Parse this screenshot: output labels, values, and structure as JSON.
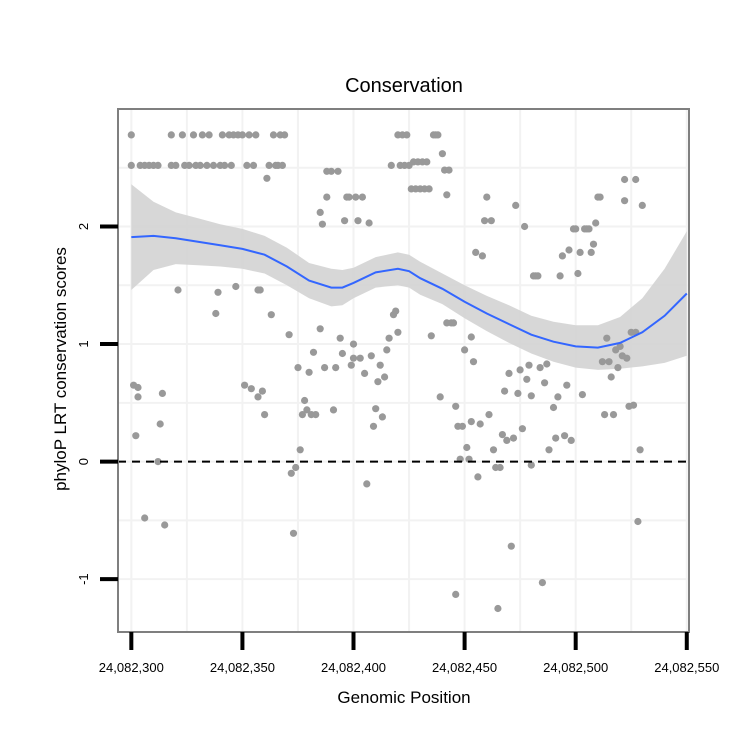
{
  "chart_data": {
    "type": "scatter",
    "title": "Conservation",
    "xlabel": "Genomic Position",
    "ylabel": "phyloP LRT conservation scores",
    "xlim": [
      24082294,
      24082551
    ],
    "ylim": [
      -1.45,
      3.0
    ],
    "x_ticks": [
      24082300,
      24082350,
      24082400,
      24082450,
      24082500,
      24082550
    ],
    "x_tick_labels": [
      "24,082,300",
      "24,082,350",
      "24,082,400",
      "24,082,450",
      "24,082,500",
      "24,082,550"
    ],
    "y_ticks": [
      -1,
      0,
      1,
      2
    ],
    "y_tick_labels": [
      "-1",
      "0",
      "1",
      "2"
    ],
    "reference_line": {
      "y": 0,
      "style": "dashed"
    },
    "colors": {
      "points": "#999999",
      "smooth": "#3366ff",
      "ribbon": "#d3d3d3",
      "panel_border": "#7f7f7f",
      "grid": "#f2f2f2"
    },
    "points": [
      [
        24082300,
        2.78
      ],
      [
        24082300,
        2.52
      ],
      [
        24082301,
        0.65
      ],
      [
        24082302,
        0.22
      ],
      [
        24082303,
        0.55
      ],
      [
        24082303,
        0.63
      ],
      [
        24082304,
        2.52
      ],
      [
        24082306,
        2.52
      ],
      [
        24082306,
        -0.48
      ],
      [
        24082308,
        2.52
      ],
      [
        24082310,
        2.52
      ],
      [
        24082312,
        2.52
      ],
      [
        24082312,
        0.0
      ],
      [
        24082313,
        0.32
      ],
      [
        24082314,
        0.58
      ],
      [
        24082315,
        -0.54
      ],
      [
        24082318,
        2.78
      ],
      [
        24082318,
        2.52
      ],
      [
        24082320,
        2.52
      ],
      [
        24082321,
        1.46
      ],
      [
        24082323,
        2.78
      ],
      [
        24082324,
        2.52
      ],
      [
        24082326,
        2.52
      ],
      [
        24082328,
        2.78
      ],
      [
        24082329,
        2.52
      ],
      [
        24082331,
        2.52
      ],
      [
        24082332,
        2.78
      ],
      [
        24082334,
        2.52
      ],
      [
        24082335,
        2.78
      ],
      [
        24082337,
        2.52
      ],
      [
        24082338,
        1.26
      ],
      [
        24082339,
        1.44
      ],
      [
        24082340,
        2.52
      ],
      [
        24082341,
        2.78
      ],
      [
        24082342,
        2.52
      ],
      [
        24082344,
        2.78
      ],
      [
        24082345,
        2.52
      ],
      [
        24082346,
        2.78
      ],
      [
        24082347,
        1.49
      ],
      [
        24082348,
        2.78
      ],
      [
        24082350,
        2.78
      ],
      [
        24082351,
        0.65
      ],
      [
        24082352,
        2.52
      ],
      [
        24082353,
        2.78
      ],
      [
        24082354,
        0.62
      ],
      [
        24082355,
        2.52
      ],
      [
        24082356,
        2.78
      ],
      [
        24082357,
        1.46
      ],
      [
        24082357,
        0.55
      ],
      [
        24082358,
        1.46
      ],
      [
        24082359,
        0.6
      ],
      [
        24082360,
        0.4
      ],
      [
        24082361,
        2.41
      ],
      [
        24082362,
        2.52
      ],
      [
        24082363,
        1.25
      ],
      [
        24082364,
        2.78
      ],
      [
        24082365,
        2.52
      ],
      [
        24082366,
        2.52
      ],
      [
        24082367,
        2.78
      ],
      [
        24082368,
        2.52
      ],
      [
        24082369,
        2.78
      ],
      [
        24082371,
        1.08
      ],
      [
        24082372,
        -0.1
      ],
      [
        24082373,
        -0.61
      ],
      [
        24082374,
        -0.05
      ],
      [
        24082375,
        0.8
      ],
      [
        24082376,
        0.1
      ],
      [
        24082377,
        0.4
      ],
      [
        24082378,
        0.52
      ],
      [
        24082379,
        0.44
      ],
      [
        24082380,
        0.76
      ],
      [
        24082381,
        0.4
      ],
      [
        24082382,
        0.93
      ],
      [
        24082383,
        0.4
      ],
      [
        24082385,
        2.12
      ],
      [
        24082385,
        1.13
      ],
      [
        24082386,
        2.02
      ],
      [
        24082387,
        0.8
      ],
      [
        24082388,
        2.25
      ],
      [
        24082388,
        2.47
      ],
      [
        24082390,
        2.47
      ],
      [
        24082391,
        0.44
      ],
      [
        24082392,
        0.8
      ],
      [
        24082393,
        2.47
      ],
      [
        24082394,
        1.05
      ],
      [
        24082395,
        0.92
      ],
      [
        24082396,
        2.05
      ],
      [
        24082397,
        2.25
      ],
      [
        24082398,
        2.25
      ],
      [
        24082399,
        0.82
      ],
      [
        24082400,
        0.88
      ],
      [
        24082400,
        1.0
      ],
      [
        24082401,
        2.25
      ],
      [
        24082402,
        2.05
      ],
      [
        24082403,
        0.88
      ],
      [
        24082404,
        2.25
      ],
      [
        24082405,
        0.75
      ],
      [
        24082406,
        -0.19
      ],
      [
        24082407,
        2.03
      ],
      [
        24082408,
        0.9
      ],
      [
        24082409,
        0.3
      ],
      [
        24082410,
        0.45
      ],
      [
        24082411,
        0.68
      ],
      [
        24082412,
        0.82
      ],
      [
        24082413,
        0.38
      ],
      [
        24082414,
        0.72
      ],
      [
        24082415,
        0.95
      ],
      [
        24082416,
        1.05
      ],
      [
        24082417,
        2.52
      ],
      [
        24082418,
        1.25
      ],
      [
        24082419,
        1.28
      ],
      [
        24082420,
        2.78
      ],
      [
        24082420,
        1.1
      ],
      [
        24082421,
        2.52
      ],
      [
        24082422,
        2.78
      ],
      [
        24082423,
        2.52
      ],
      [
        24082424,
        2.78
      ],
      [
        24082425,
        2.52
      ],
      [
        24082426,
        2.32
      ],
      [
        24082427,
        2.55
      ],
      [
        24082428,
        2.32
      ],
      [
        24082429,
        2.55
      ],
      [
        24082430,
        2.32
      ],
      [
        24082431,
        2.55
      ],
      [
        24082432,
        2.32
      ],
      [
        24082433,
        2.55
      ],
      [
        24082434,
        2.32
      ],
      [
        24082435,
        1.07
      ],
      [
        24082436,
        2.78
      ],
      [
        24082437,
        2.78
      ],
      [
        24082438,
        2.78
      ],
      [
        24082439,
        0.55
      ],
      [
        24082440,
        2.62
      ],
      [
        24082441,
        2.48
      ],
      [
        24082442,
        2.27
      ],
      [
        24082442,
        1.18
      ],
      [
        24082443,
        2.48
      ],
      [
        24082444,
        1.18
      ],
      [
        24082445,
        1.18
      ],
      [
        24082446,
        -1.13
      ],
      [
        24082446,
        0.47
      ],
      [
        24082447,
        0.3
      ],
      [
        24082448,
        0.02
      ],
      [
        24082449,
        0.3
      ],
      [
        24082450,
        0.95
      ],
      [
        24082451,
        0.12
      ],
      [
        24082452,
        0.02
      ],
      [
        24082453,
        1.06
      ],
      [
        24082453,
        0.34
      ],
      [
        24082454,
        0.85
      ],
      [
        24082455,
        1.78
      ],
      [
        24082456,
        -0.13
      ],
      [
        24082457,
        0.32
      ],
      [
        24082458,
        1.75
      ],
      [
        24082459,
        2.05
      ],
      [
        24082460,
        2.25
      ],
      [
        24082461,
        0.4
      ],
      [
        24082462,
        2.05
      ],
      [
        24082463,
        0.1
      ],
      [
        24082464,
        -0.05
      ],
      [
        24082465,
        -1.25
      ],
      [
        24082466,
        -0.05
      ],
      [
        24082467,
        0.23
      ],
      [
        24082468,
        0.6
      ],
      [
        24082469,
        0.18
      ],
      [
        24082470,
        0.75
      ],
      [
        24082471,
        -0.72
      ],
      [
        24082472,
        0.2
      ],
      [
        24082473,
        2.18
      ],
      [
        24082474,
        0.58
      ],
      [
        24082475,
        0.78
      ],
      [
        24082476,
        0.28
      ],
      [
        24082477,
        2.0
      ],
      [
        24082478,
        0.7
      ],
      [
        24082479,
        0.82
      ],
      [
        24082480,
        -0.03
      ],
      [
        24082480,
        0.56
      ],
      [
        24082481,
        1.58
      ],
      [
        24082482,
        1.58
      ],
      [
        24082483,
        1.58
      ],
      [
        24082484,
        0.8
      ],
      [
        24082485,
        -1.03
      ],
      [
        24082486,
        0.67
      ],
      [
        24082487,
        0.83
      ],
      [
        24082488,
        0.1
      ],
      [
        24082490,
        0.46
      ],
      [
        24082491,
        0.2
      ],
      [
        24082492,
        0.55
      ],
      [
        24082493,
        1.58
      ],
      [
        24082494,
        1.75
      ],
      [
        24082495,
        0.22
      ],
      [
        24082496,
        0.65
      ],
      [
        24082497,
        1.8
      ],
      [
        24082498,
        0.18
      ],
      [
        24082499,
        1.98
      ],
      [
        24082500,
        1.98
      ],
      [
        24082501,
        1.6
      ],
      [
        24082502,
        1.78
      ],
      [
        24082503,
        0.57
      ],
      [
        24082504,
        1.98
      ],
      [
        24082505,
        1.98
      ],
      [
        24082506,
        1.98
      ],
      [
        24082507,
        1.78
      ],
      [
        24082508,
        1.85
      ],
      [
        24082509,
        2.03
      ],
      [
        24082510,
        2.25
      ],
      [
        24082511,
        2.25
      ],
      [
        24082512,
        0.85
      ],
      [
        24082513,
        0.4
      ],
      [
        24082514,
        1.05
      ],
      [
        24082515,
        0.85
      ],
      [
        24082516,
        0.72
      ],
      [
        24082517,
        0.4
      ],
      [
        24082518,
        0.95
      ],
      [
        24082519,
        0.8
      ],
      [
        24082520,
        0.98
      ],
      [
        24082521,
        0.9
      ],
      [
        24082522,
        2.4
      ],
      [
        24082522,
        2.22
      ],
      [
        24082523,
        0.88
      ],
      [
        24082524,
        0.47
      ],
      [
        24082525,
        1.1
      ],
      [
        24082526,
        0.48
      ],
      [
        24082527,
        2.4
      ],
      [
        24082527,
        1.1
      ],
      [
        24082528,
        -0.51
      ],
      [
        24082529,
        0.1
      ],
      [
        24082530,
        2.18
      ]
    ],
    "smooth": {
      "x": [
        24082300,
        24082310,
        24082320,
        24082330,
        24082340,
        24082350,
        24082360,
        24082370,
        24082380,
        24082390,
        24082395,
        24082400,
        24082410,
        24082420,
        24082425,
        24082430,
        24082440,
        24082450,
        24082460,
        24082470,
        24082480,
        24082490,
        24082500,
        24082510,
        24082520,
        24082530,
        24082540,
        24082550
      ],
      "y": [
        1.91,
        1.92,
        1.9,
        1.87,
        1.84,
        1.81,
        1.76,
        1.66,
        1.54,
        1.48,
        1.48,
        1.52,
        1.61,
        1.64,
        1.62,
        1.56,
        1.47,
        1.36,
        1.26,
        1.17,
        1.08,
        1.02,
        0.98,
        0.97,
        1.01,
        1.1,
        1.24,
        1.43
      ],
      "lower": [
        1.46,
        1.63,
        1.68,
        1.67,
        1.66,
        1.64,
        1.6,
        1.5,
        1.39,
        1.32,
        1.33,
        1.39,
        1.48,
        1.5,
        1.48,
        1.42,
        1.34,
        1.22,
        1.11,
        1.01,
        0.92,
        0.85,
        0.8,
        0.78,
        0.79,
        0.81,
        0.84,
        0.9
      ],
      "upper": [
        2.36,
        2.21,
        2.12,
        2.07,
        2.02,
        1.98,
        1.92,
        1.82,
        1.69,
        1.64,
        1.63,
        1.65,
        1.74,
        1.78,
        1.76,
        1.7,
        1.6,
        1.5,
        1.41,
        1.33,
        1.24,
        1.19,
        1.16,
        1.16,
        1.23,
        1.39,
        1.64,
        1.96
      ]
    }
  }
}
